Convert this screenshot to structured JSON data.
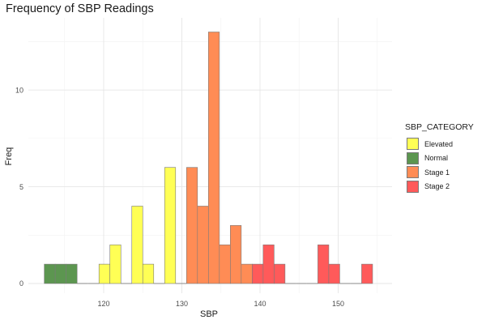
{
  "chart_data": {
    "type": "bar",
    "title": "Frequency of SBP Readings",
    "xlabel": "SBP",
    "ylabel": "Freq",
    "xlim": [
      111.5,
      155.5
    ],
    "ylim": [
      0,
      13.6
    ],
    "x_ticks": [
      120,
      130,
      140,
      150
    ],
    "y_ticks": [
      0,
      5,
      10
    ],
    "legend_title": "SBP_CATEGORY",
    "legend_position": "right",
    "grid": true,
    "bin_width": 1.4,
    "categories": [
      {
        "name": "Elevated",
        "color": "#ffff55"
      },
      {
        "name": "Normal",
        "color": "#5c9650"
      },
      {
        "name": "Stage 1",
        "color": "#ff8c55"
      },
      {
        "name": "Stage 2",
        "color": "#ff5a5a"
      }
    ],
    "bins": [
      {
        "x": 113.1,
        "count": 1,
        "category": "Normal"
      },
      {
        "x": 114.5,
        "count": 1,
        "category": "Normal"
      },
      {
        "x": 115.9,
        "count": 1,
        "category": "Normal"
      },
      {
        "x": 117.3,
        "count": 0,
        "category": "Normal"
      },
      {
        "x": 118.7,
        "count": 0,
        "category": "Elevated"
      },
      {
        "x": 120.1,
        "count": 1,
        "category": "Elevated"
      },
      {
        "x": 121.5,
        "count": 2,
        "category": "Elevated"
      },
      {
        "x": 122.9,
        "count": 0,
        "category": "Elevated"
      },
      {
        "x": 124.3,
        "count": 4,
        "category": "Elevated"
      },
      {
        "x": 125.7,
        "count": 1,
        "category": "Elevated"
      },
      {
        "x": 127.1,
        "count": 0,
        "category": "Elevated"
      },
      {
        "x": 128.5,
        "count": 6,
        "category": "Elevated"
      },
      {
        "x": 129.9,
        "count": 0,
        "category": "Elevated"
      },
      {
        "x": 131.3,
        "count": 6,
        "category": "Stage 1"
      },
      {
        "x": 132.7,
        "count": 4,
        "category": "Stage 1"
      },
      {
        "x": 134.1,
        "count": 13,
        "category": "Stage 1"
      },
      {
        "x": 135.5,
        "count": 2,
        "category": "Stage 1"
      },
      {
        "x": 136.9,
        "count": 3,
        "category": "Stage 1"
      },
      {
        "x": 138.3,
        "count": 1,
        "category": "Stage 1"
      },
      {
        "x": 139.7,
        "count": 1,
        "category": "Stage 2"
      },
      {
        "x": 141.1,
        "count": 2,
        "category": "Stage 2"
      },
      {
        "x": 142.5,
        "count": 1,
        "category": "Stage 2"
      },
      {
        "x": 143.9,
        "count": 0,
        "category": "Stage 2"
      },
      {
        "x": 145.3,
        "count": 0,
        "category": "Stage 2"
      },
      {
        "x": 146.7,
        "count": 0,
        "category": "Stage 2"
      },
      {
        "x": 148.1,
        "count": 2,
        "category": "Stage 2"
      },
      {
        "x": 149.5,
        "count": 1,
        "category": "Stage 2"
      },
      {
        "x": 150.9,
        "count": 0,
        "category": "Stage 2"
      },
      {
        "x": 152.3,
        "count": 0,
        "category": "Stage 2"
      },
      {
        "x": 153.7,
        "count": 1,
        "category": "Stage 2"
      }
    ]
  }
}
